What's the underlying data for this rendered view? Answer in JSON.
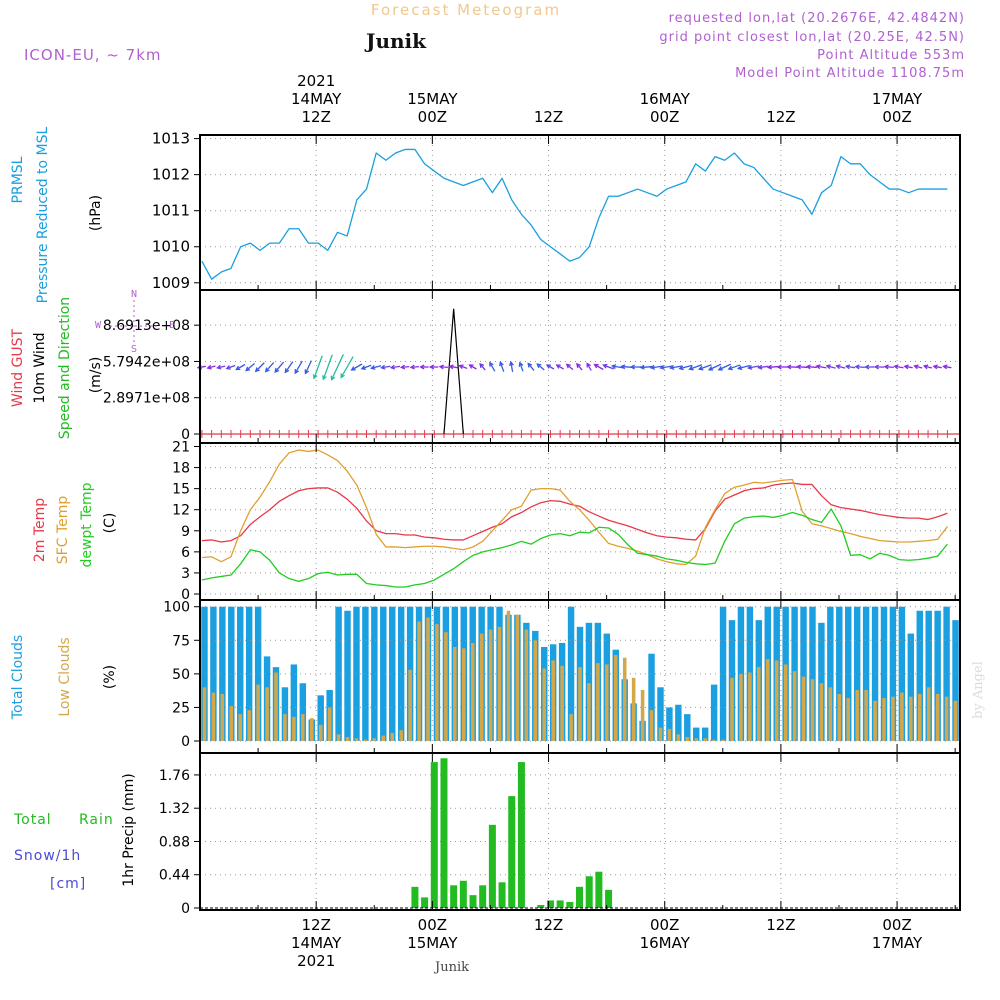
{
  "header": {
    "title": "Forecast Meteogram",
    "location": "Junik",
    "model": "ICON-EU, ~ 7km",
    "requested": "requested lon,lat (20.2676E, 42.4842N)",
    "gridpoint": "grid point closest lon,lat (20.25E, 42.5N)",
    "point_alt": "Point Altitude 553m",
    "model_alt": "Model Point Altitude 1108.75m",
    "footer_location": "Junik",
    "watermark": "by Angel"
  },
  "colors": {
    "pressure": "#1a9fe0",
    "gust": "#e8384a",
    "wind": "#000000",
    "direction": "#22bb22",
    "t2m": "#e8384a",
    "sfc": "#e0a030",
    "dewpt": "#22cc22",
    "total_clouds": "#1a9fe0",
    "low_clouds": "#d4a84a",
    "rain": "#22bb22",
    "snow": "#4a4ad8",
    "header_title": "#f0c890",
    "header_info": "#b060d0",
    "grid": "#999999"
  },
  "time_axis": {
    "top_labels": [
      {
        "t": 12,
        "lines": [
          "2021",
          "14MAY",
          "12Z"
        ]
      },
      {
        "t": 24,
        "lines": [
          "15MAY",
          "00Z"
        ]
      },
      {
        "t": 36,
        "lines": [
          "12Z"
        ]
      },
      {
        "t": 48,
        "lines": [
          "16MAY",
          "00Z"
        ]
      },
      {
        "t": 60,
        "lines": [
          "12Z"
        ]
      },
      {
        "t": 72,
        "lines": [
          "17MAY",
          "00Z"
        ]
      }
    ],
    "bottom_labels": [
      {
        "t": 12,
        "lines": [
          "12Z",
          "14MAY",
          "2021"
        ]
      },
      {
        "t": 24,
        "lines": [
          "00Z",
          "15MAY"
        ]
      },
      {
        "t": 36,
        "lines": [
          "12Z"
        ]
      },
      {
        "t": 48,
        "lines": [
          "00Z",
          "16MAY"
        ]
      },
      {
        "t": 60,
        "lines": [
          "12Z"
        ]
      },
      {
        "t": 72,
        "lines": [
          "00Z",
          "17MAY"
        ]
      }
    ]
  },
  "chart_data": [
    {
      "type": "line",
      "panel": "pressure",
      "ylabels": [
        "PRMSL",
        "Pressure Reduced to MSL",
        "(hPa)"
      ],
      "ylim": [
        1008.8,
        1013.1
      ],
      "yticks": [
        "1009",
        "1010",
        "1011",
        "1012",
        "1013"
      ],
      "series": [
        {
          "values": [
            1009.6,
            1009.1,
            1009.3,
            1009.4,
            1010.0,
            1010.1,
            1009.9,
            1010.1,
            1010.1,
            1010.5,
            1010.5,
            1010.1,
            1010.1,
            1009.9,
            1010.4,
            1010.3,
            1011.3,
            1011.6,
            1012.6,
            1012.4,
            1012.6,
            1012.7,
            1012.7,
            1012.3,
            1012.1,
            1011.9,
            1011.8,
            1011.7,
            1011.8,
            1011.9,
            1011.5,
            1011.9,
            1011.3,
            1010.9,
            1010.6,
            1010.2,
            1010.0,
            1009.8,
            1009.6,
            1009.7,
            1010.0,
            1010.8,
            1011.4,
            1011.4,
            1011.5,
            1011.6,
            1011.5,
            1011.4,
            1011.6,
            1011.7,
            1011.8,
            1012.3,
            1012.1,
            1012.5,
            1012.4,
            1012.6,
            1012.3,
            1012.2,
            1011.9,
            1011.6,
            1011.5,
            1011.4,
            1011.3,
            1010.9,
            1011.5,
            1011.7,
            1012.5,
            1012.3,
            1012.3,
            1012.0,
            1011.8,
            1011.6,
            1011.6,
            1011.5,
            1011.6,
            1011.6,
            1011.6,
            1011.6
          ]
        }
      ]
    },
    {
      "type": "line",
      "panel": "wind",
      "ylabels": [
        "Wind GUST",
        "10m Wind",
        "Speed and Direction",
        "(m/s)"
      ],
      "ylim": [
        0,
        1150000000.0
      ],
      "yticks": [
        "0",
        "2.8971e+08",
        "5.7942e+08",
        "8.6913e+08"
      ],
      "compass": [
        "N",
        "W",
        "E",
        "S"
      ],
      "gust_values_ms": 0,
      "wind_spike": {
        "t_start": 25.2,
        "t_peak": 26.2,
        "t_end": 27.2,
        "value": 1000000000.0
      },
      "arrow_dir_deg": [
        260,
        255,
        258,
        250,
        240,
        230,
        225,
        222,
        220,
        215,
        210,
        205,
        200,
        200,
        205,
        210,
        240,
        250,
        255,
        260,
        262,
        265,
        265,
        270,
        270,
        275,
        280,
        290,
        300,
        320,
        330,
        340,
        350,
        340,
        320,
        310,
        300,
        300,
        310,
        320,
        330,
        300,
        290,
        280,
        275,
        270,
        265,
        262,
        260,
        260,
        255,
        250,
        250,
        245,
        245,
        250,
        255,
        260,
        262,
        265,
        270,
        272,
        275,
        275,
        280,
        285,
        285,
        280,
        275,
        270,
        272,
        275,
        280,
        280,
        285,
        285,
        280,
        280
      ],
      "arrow_len": [
        8,
        8,
        8,
        9,
        10,
        11,
        12,
        12,
        13,
        13,
        14,
        14,
        24,
        26,
        28,
        24,
        12,
        10,
        10,
        9,
        9,
        8,
        8,
        8,
        8,
        8,
        8,
        8,
        8,
        8,
        10,
        10,
        10,
        9,
        9,
        9,
        8,
        8,
        8,
        8,
        8,
        10,
        11,
        12,
        13,
        13,
        13,
        12,
        12,
        12,
        13,
        13,
        13,
        13,
        13,
        12,
        12,
        11,
        10,
        10,
        10,
        10,
        10,
        10,
        10,
        9,
        9,
        9,
        9,
        9,
        9,
        9,
        9,
        8,
        8,
        8,
        8,
        8
      ],
      "arrow_color": [
        "#8a2be2",
        "#8a2be2",
        "#7a3be2",
        "#5a4ae2",
        "#3a5ae2",
        "#3a5ae2",
        "#3a5ae2",
        "#3a5ae2",
        "#3a5ae2",
        "#3a5ae2",
        "#3a5ae2",
        "#3a5ae2",
        "#22c0a0",
        "#22c0a0",
        "#22c0a0",
        "#22c0a0",
        "#3a5ae2",
        "#3a5ae2",
        "#3a5ae2",
        "#5a4ae2",
        "#7a3be2",
        "#8a2be2",
        "#8a2be2",
        "#8a2be2",
        "#8a2be2",
        "#8a2be2",
        "#8a2be2",
        "#8a2be2",
        "#8a2be2",
        "#6a3ae2",
        "#3a5ae2",
        "#3a5ae2",
        "#3a5ae2",
        "#3a5ae2",
        "#3a5ae2",
        "#3a5ae2",
        "#5a4ae2",
        "#7a3be2",
        "#8a2be2",
        "#8a2be2",
        "#8a2be2",
        "#8a2be2",
        "#6a3ae2",
        "#3a5ae2",
        "#3a5ae2",
        "#3a5ae2",
        "#3a5ae2",
        "#3a5ae2",
        "#3a5ae2",
        "#3a5ae2",
        "#3a5ae2",
        "#3a5ae2",
        "#3a5ae2",
        "#3a5ae2",
        "#3a5ae2",
        "#3a5ae2",
        "#3a5ae2",
        "#5a4ae2",
        "#7a3be2",
        "#8a2be2",
        "#8a2be2",
        "#8a2be2",
        "#8a2be2",
        "#8a2be2",
        "#8a2be2",
        "#7a3be2",
        "#7a3be2",
        "#5a4ae2",
        "#5a4ae2",
        "#5a4ae2",
        "#7a3be2",
        "#8a2be2",
        "#8a2be2",
        "#8a2be2",
        "#8a2be2",
        "#8a2be2",
        "#8a2be2",
        "#8a2be2"
      ]
    },
    {
      "type": "line",
      "panel": "temperature",
      "ylabels": [
        "2m Temp",
        "SFC Temp",
        "dewpt Temp",
        "(C)"
      ],
      "ylim": [
        0,
        21.5
      ],
      "yticks": [
        "0",
        "3",
        "6",
        "9",
        "12",
        "15",
        "18",
        "21"
      ],
      "series": [
        {
          "key": "t2m",
          "values": [
            7.6,
            7.7,
            7.4,
            7.6,
            8.3,
            9.9,
            11.0,
            12.0,
            13.2,
            14.0,
            14.7,
            15.0,
            15.1,
            15.1,
            14.5,
            13.5,
            12.2,
            10.4,
            9.0,
            8.6,
            8.6,
            8.4,
            8.4,
            8.1,
            8.0,
            7.8,
            7.7,
            7.7,
            8.3,
            8.9,
            9.5,
            10.0,
            11.0,
            11.6,
            12.4,
            13.0,
            13.3,
            13.2,
            12.8,
            12.5,
            11.7,
            11.1,
            10.5,
            10.1,
            9.7,
            9.2,
            8.7,
            8.3,
            8.1,
            8.0,
            7.8,
            7.7,
            9.3,
            11.8,
            13.5,
            14.1,
            14.7,
            15.0,
            15.1,
            15.5,
            15.7,
            15.8,
            15.6,
            15.6,
            14.0,
            12.7,
            12.3,
            12.1,
            11.9,
            11.6,
            11.3,
            11.1,
            10.9,
            10.8,
            10.8,
            10.6,
            11.0,
            11.5
          ]
        },
        {
          "key": "sfc",
          "values": [
            5.2,
            5.3,
            4.6,
            5.3,
            9.0,
            12.0,
            13.8,
            16.0,
            18.5,
            20.1,
            20.5,
            20.3,
            20.5,
            19.8,
            19.0,
            17.5,
            15.5,
            12.3,
            8.5,
            6.7,
            6.7,
            6.6,
            6.7,
            6.8,
            6.8,
            6.7,
            6.5,
            6.3,
            6.7,
            7.5,
            9.0,
            10.5,
            12.0,
            12.5,
            14.8,
            15.0,
            15.0,
            14.8,
            13.2,
            12.0,
            10.5,
            8.8,
            7.2,
            6.8,
            6.5,
            6.1,
            5.6,
            5.0,
            4.6,
            4.3,
            4.2,
            5.4,
            9.5,
            12.0,
            14.3,
            15.2,
            15.5,
            15.9,
            15.8,
            16.0,
            16.2,
            16.3,
            11.8,
            10.0,
            9.7,
            9.3,
            8.9,
            8.6,
            8.2,
            7.9,
            7.6,
            7.5,
            7.4,
            7.4,
            7.5,
            7.6,
            7.8,
            9.6
          ]
        },
        {
          "key": "dewpt",
          "values": [
            2.0,
            2.3,
            2.5,
            2.7,
            4.3,
            6.3,
            6.0,
            4.8,
            3.0,
            2.2,
            1.8,
            2.2,
            2.9,
            3.1,
            2.7,
            2.8,
            2.8,
            1.5,
            1.3,
            1.2,
            1.0,
            1.0,
            1.3,
            1.5,
            2.0,
            2.8,
            3.6,
            4.6,
            5.5,
            6.0,
            6.3,
            6.6,
            7.0,
            7.5,
            7.1,
            7.9,
            8.4,
            8.6,
            8.3,
            8.8,
            8.7,
            9.5,
            9.4,
            8.5,
            7.0,
            5.8,
            5.6,
            5.4,
            5.0,
            4.8,
            4.5,
            4.3,
            4.2,
            4.4,
            7.5,
            10.0,
            10.8,
            11.0,
            11.1,
            10.9,
            11.2,
            11.6,
            11.2,
            10.6,
            10.2,
            12.1,
            9.7,
            5.5,
            5.6,
            5.0,
            5.8,
            5.5,
            4.9,
            4.8,
            4.9,
            5.1,
            5.4,
            7.1
          ]
        }
      ]
    },
    {
      "type": "bar",
      "panel": "clouds",
      "ylabels": [
        "Total Clouds",
        "Low Clouds",
        "(%)"
      ],
      "ylim": [
        0,
        105
      ],
      "yticks": [
        "0",
        "25",
        "50",
        "75",
        "100"
      ],
      "series": [
        {
          "key": "total",
          "values": [
            100,
            100,
            100,
            100,
            100,
            100,
            100,
            63,
            55,
            40,
            57,
            43,
            16,
            34,
            38,
            100,
            97,
            100,
            100,
            100,
            100,
            100,
            100,
            100,
            100,
            100,
            100,
            100,
            100,
            100,
            100,
            100,
            100,
            100,
            94,
            94,
            88,
            82,
            70,
            72,
            73,
            100,
            85,
            88,
            88,
            80,
            68,
            46,
            28,
            15,
            65,
            40,
            25,
            27,
            20,
            10,
            10,
            42,
            100,
            90,
            100,
            100,
            90,
            100,
            100,
            100,
            100,
            100,
            100,
            88,
            100,
            100,
            100,
            100,
            100,
            100,
            100,
            100,
            100,
            80,
            97,
            97,
            97,
            100,
            90
          ]
        },
        {
          "key": "low",
          "values": [
            40,
            36,
            35,
            26,
            20,
            23,
            42,
            40,
            51,
            20,
            18,
            20,
            17,
            12,
            25,
            5,
            3,
            2,
            1,
            2,
            4,
            6,
            8,
            53,
            89,
            92,
            87,
            81,
            70,
            69,
            73,
            80,
            83,
            85,
            97,
            94,
            83,
            75,
            54,
            60,
            56,
            20,
            55,
            43,
            58,
            57,
            64,
            62,
            47,
            38,
            23,
            10,
            9,
            5,
            3,
            2,
            2,
            1,
            1,
            47,
            50,
            51,
            55,
            61,
            60,
            57,
            52,
            48,
            46,
            43,
            40,
            35,
            32,
            38,
            38,
            30,
            32,
            33,
            36,
            33,
            35,
            40,
            35,
            33,
            30
          ]
        }
      ]
    },
    {
      "type": "bar",
      "panel": "precip",
      "ylabels": [
        "1hr Precip (mm)"
      ],
      "legend": [
        "Total",
        "Rain",
        "Snow/1h",
        "[cm]"
      ],
      "ylim": [
        0,
        2.05
      ],
      "yticks": [
        "0",
        "0.44",
        "0.88",
        "1.32",
        "1.76"
      ],
      "bars": [
        {
          "t": 22.2,
          "v": 0.28
        },
        {
          "t": 23.2,
          "v": 0.14
        },
        {
          "t": 24.2,
          "v": 1.93
        },
        {
          "t": 25.2,
          "v": 1.98
        },
        {
          "t": 26.2,
          "v": 0.3
        },
        {
          "t": 27.2,
          "v": 0.36
        },
        {
          "t": 28.2,
          "v": 0.17
        },
        {
          "t": 29.2,
          "v": 0.3
        },
        {
          "t": 30.2,
          "v": 1.1
        },
        {
          "t": 31.2,
          "v": 0.34
        },
        {
          "t": 32.2,
          "v": 1.48
        },
        {
          "t": 33.2,
          "v": 1.93
        },
        {
          "t": 35.2,
          "v": 0.04
        },
        {
          "t": 36.2,
          "v": 0.1
        },
        {
          "t": 37.2,
          "v": 0.1
        },
        {
          "t": 38.2,
          "v": 0.08
        },
        {
          "t": 39.2,
          "v": 0.28
        },
        {
          "t": 40.2,
          "v": 0.42
        },
        {
          "t": 41.2,
          "v": 0.48
        },
        {
          "t": 42.2,
          "v": 0.24
        }
      ]
    }
  ]
}
